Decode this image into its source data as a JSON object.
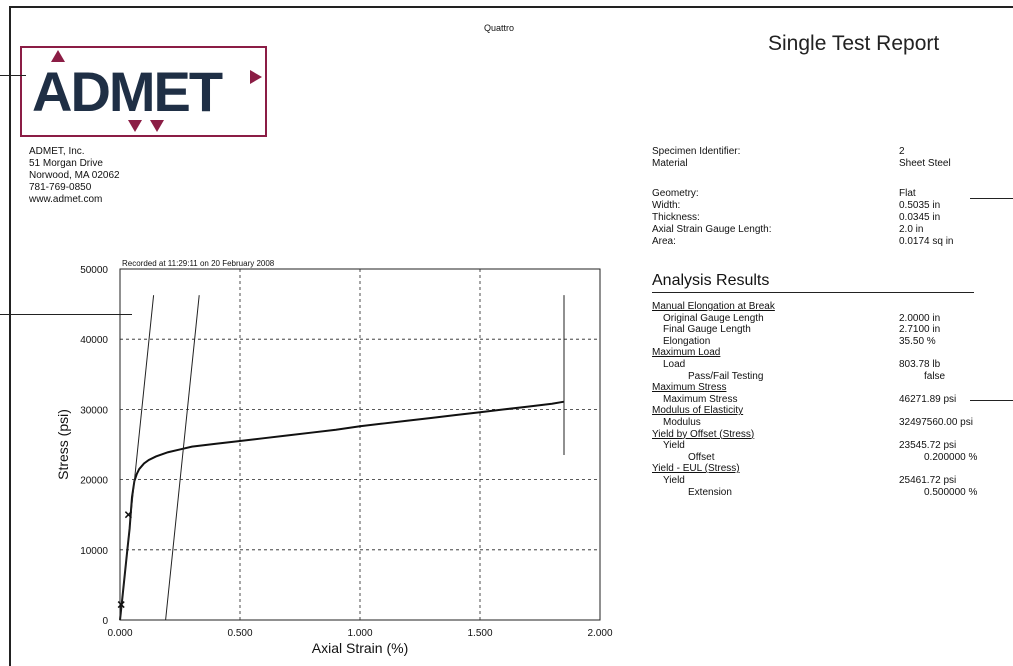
{
  "header": {
    "top_title": "Quattro",
    "report_title": "Single Test Report"
  },
  "logo": {
    "text": "ADMET"
  },
  "company": {
    "lines": [
      "ADMET, Inc.",
      "51 Morgan Drive",
      "Norwood, MA 02062",
      "781-769-0850",
      "www.admet.com"
    ]
  },
  "specimen": {
    "group1": [
      {
        "label": "Specimen Identifier:",
        "value": "2"
      },
      {
        "label": "Material",
        "value": "Sheet Steel"
      }
    ],
    "group2": [
      {
        "label": "Geometry:",
        "value": "Flat"
      },
      {
        "label": "Width:",
        "value": "0.5035 in"
      },
      {
        "label": "Thickness:",
        "value": "0.0345 in"
      },
      {
        "label": "Axial Strain Gauge Length:",
        "value": "2.0 in"
      },
      {
        "label": "Area:",
        "value": "0.0174 sq in"
      }
    ]
  },
  "analysis": {
    "title": "Analysis Results",
    "rows": [
      {
        "label": "Manual Elongation at Break",
        "value": "",
        "kind": "section"
      },
      {
        "label": "Original Gauge Length",
        "value": "2.0000 in",
        "kind": "item"
      },
      {
        "label": "Final Gauge Length",
        "value": "2.7100 in",
        "kind": "item"
      },
      {
        "label": "Elongation",
        "value": "35.50 %",
        "kind": "item"
      },
      {
        "label": "Maximum Load",
        "value": "",
        "kind": "section"
      },
      {
        "label": "Load",
        "value": "803.78 lb",
        "kind": "item"
      },
      {
        "label": "Pass/Fail Testing",
        "value": "false",
        "kind": "sub"
      },
      {
        "label": "Maximum Stress",
        "value": "",
        "kind": "section"
      },
      {
        "label": "Maximum Stress",
        "value": "46271.89 psi",
        "kind": "item"
      },
      {
        "label": "Modulus of Elasticity",
        "value": "",
        "kind": "section"
      },
      {
        "label": "Modulus",
        "value": "32497560.00 psi",
        "kind": "item"
      },
      {
        "label": "Yield by Offset (Stress)",
        "value": "",
        "kind": "section"
      },
      {
        "label": "Yield",
        "value": "23545.72 psi",
        "kind": "item"
      },
      {
        "label": "Offset",
        "value": "0.200000 %",
        "kind": "sub"
      },
      {
        "label": "Yield - EUL (Stress)",
        "value": "",
        "kind": "section"
      },
      {
        "label": "Yield",
        "value": "25461.72 psi",
        "kind": "item"
      },
      {
        "label": "Extension",
        "value": "0.500000 %",
        "kind": "sub"
      }
    ]
  },
  "chart_data": {
    "type": "line",
    "recorded": "Recorded at 11:29:11 on 20 February 2008",
    "xlabel": "Axial Strain (%)",
    "ylabel": "Stress (psi)",
    "xlim": [
      0,
      2.0
    ],
    "ylim": [
      0,
      50000
    ],
    "x_ticks": [
      "0.000",
      "0.500",
      "1.000",
      "1.500",
      "2.000"
    ],
    "y_ticks": [
      "0",
      "10000",
      "20000",
      "30000",
      "40000",
      "50000"
    ],
    "grid": true,
    "series": [
      {
        "x": [
          0,
          0.01,
          0.02,
          0.03,
          0.04,
          0.05,
          0.06,
          0.07,
          0.08,
          0.1,
          0.12,
          0.15,
          0.2,
          0.25,
          0.3,
          0.4,
          0.5,
          0.6,
          0.7,
          0.8,
          0.9,
          1.0,
          1.1,
          1.2,
          1.3,
          1.4,
          1.5,
          1.6,
          1.7,
          1.8,
          1.85
        ],
        "y": [
          0,
          3200,
          6500,
          9800,
          13000,
          17500,
          19800,
          20800,
          21500,
          22300,
          22800,
          23300,
          23900,
          24300,
          24700,
          25100,
          25500,
          25900,
          26300,
          26700,
          27100,
          27600,
          28000,
          28400,
          28800,
          29200,
          29600,
          30000,
          30400,
          30800,
          31100
        ]
      }
    ],
    "markers": [
      {
        "x": 0.005,
        "y": 2200
      },
      {
        "x": 0.035,
        "y": 15000
      }
    ],
    "modulus_line": {
      "x": [
        0.0,
        0.14
      ],
      "y": [
        0,
        46271.89
      ]
    },
    "offset_line": {
      "x": [
        0.19,
        0.33
      ],
      "y": [
        0,
        46271.89
      ]
    },
    "vline_x": 1.85,
    "vline_y": [
      23500,
      46271.89
    ]
  }
}
